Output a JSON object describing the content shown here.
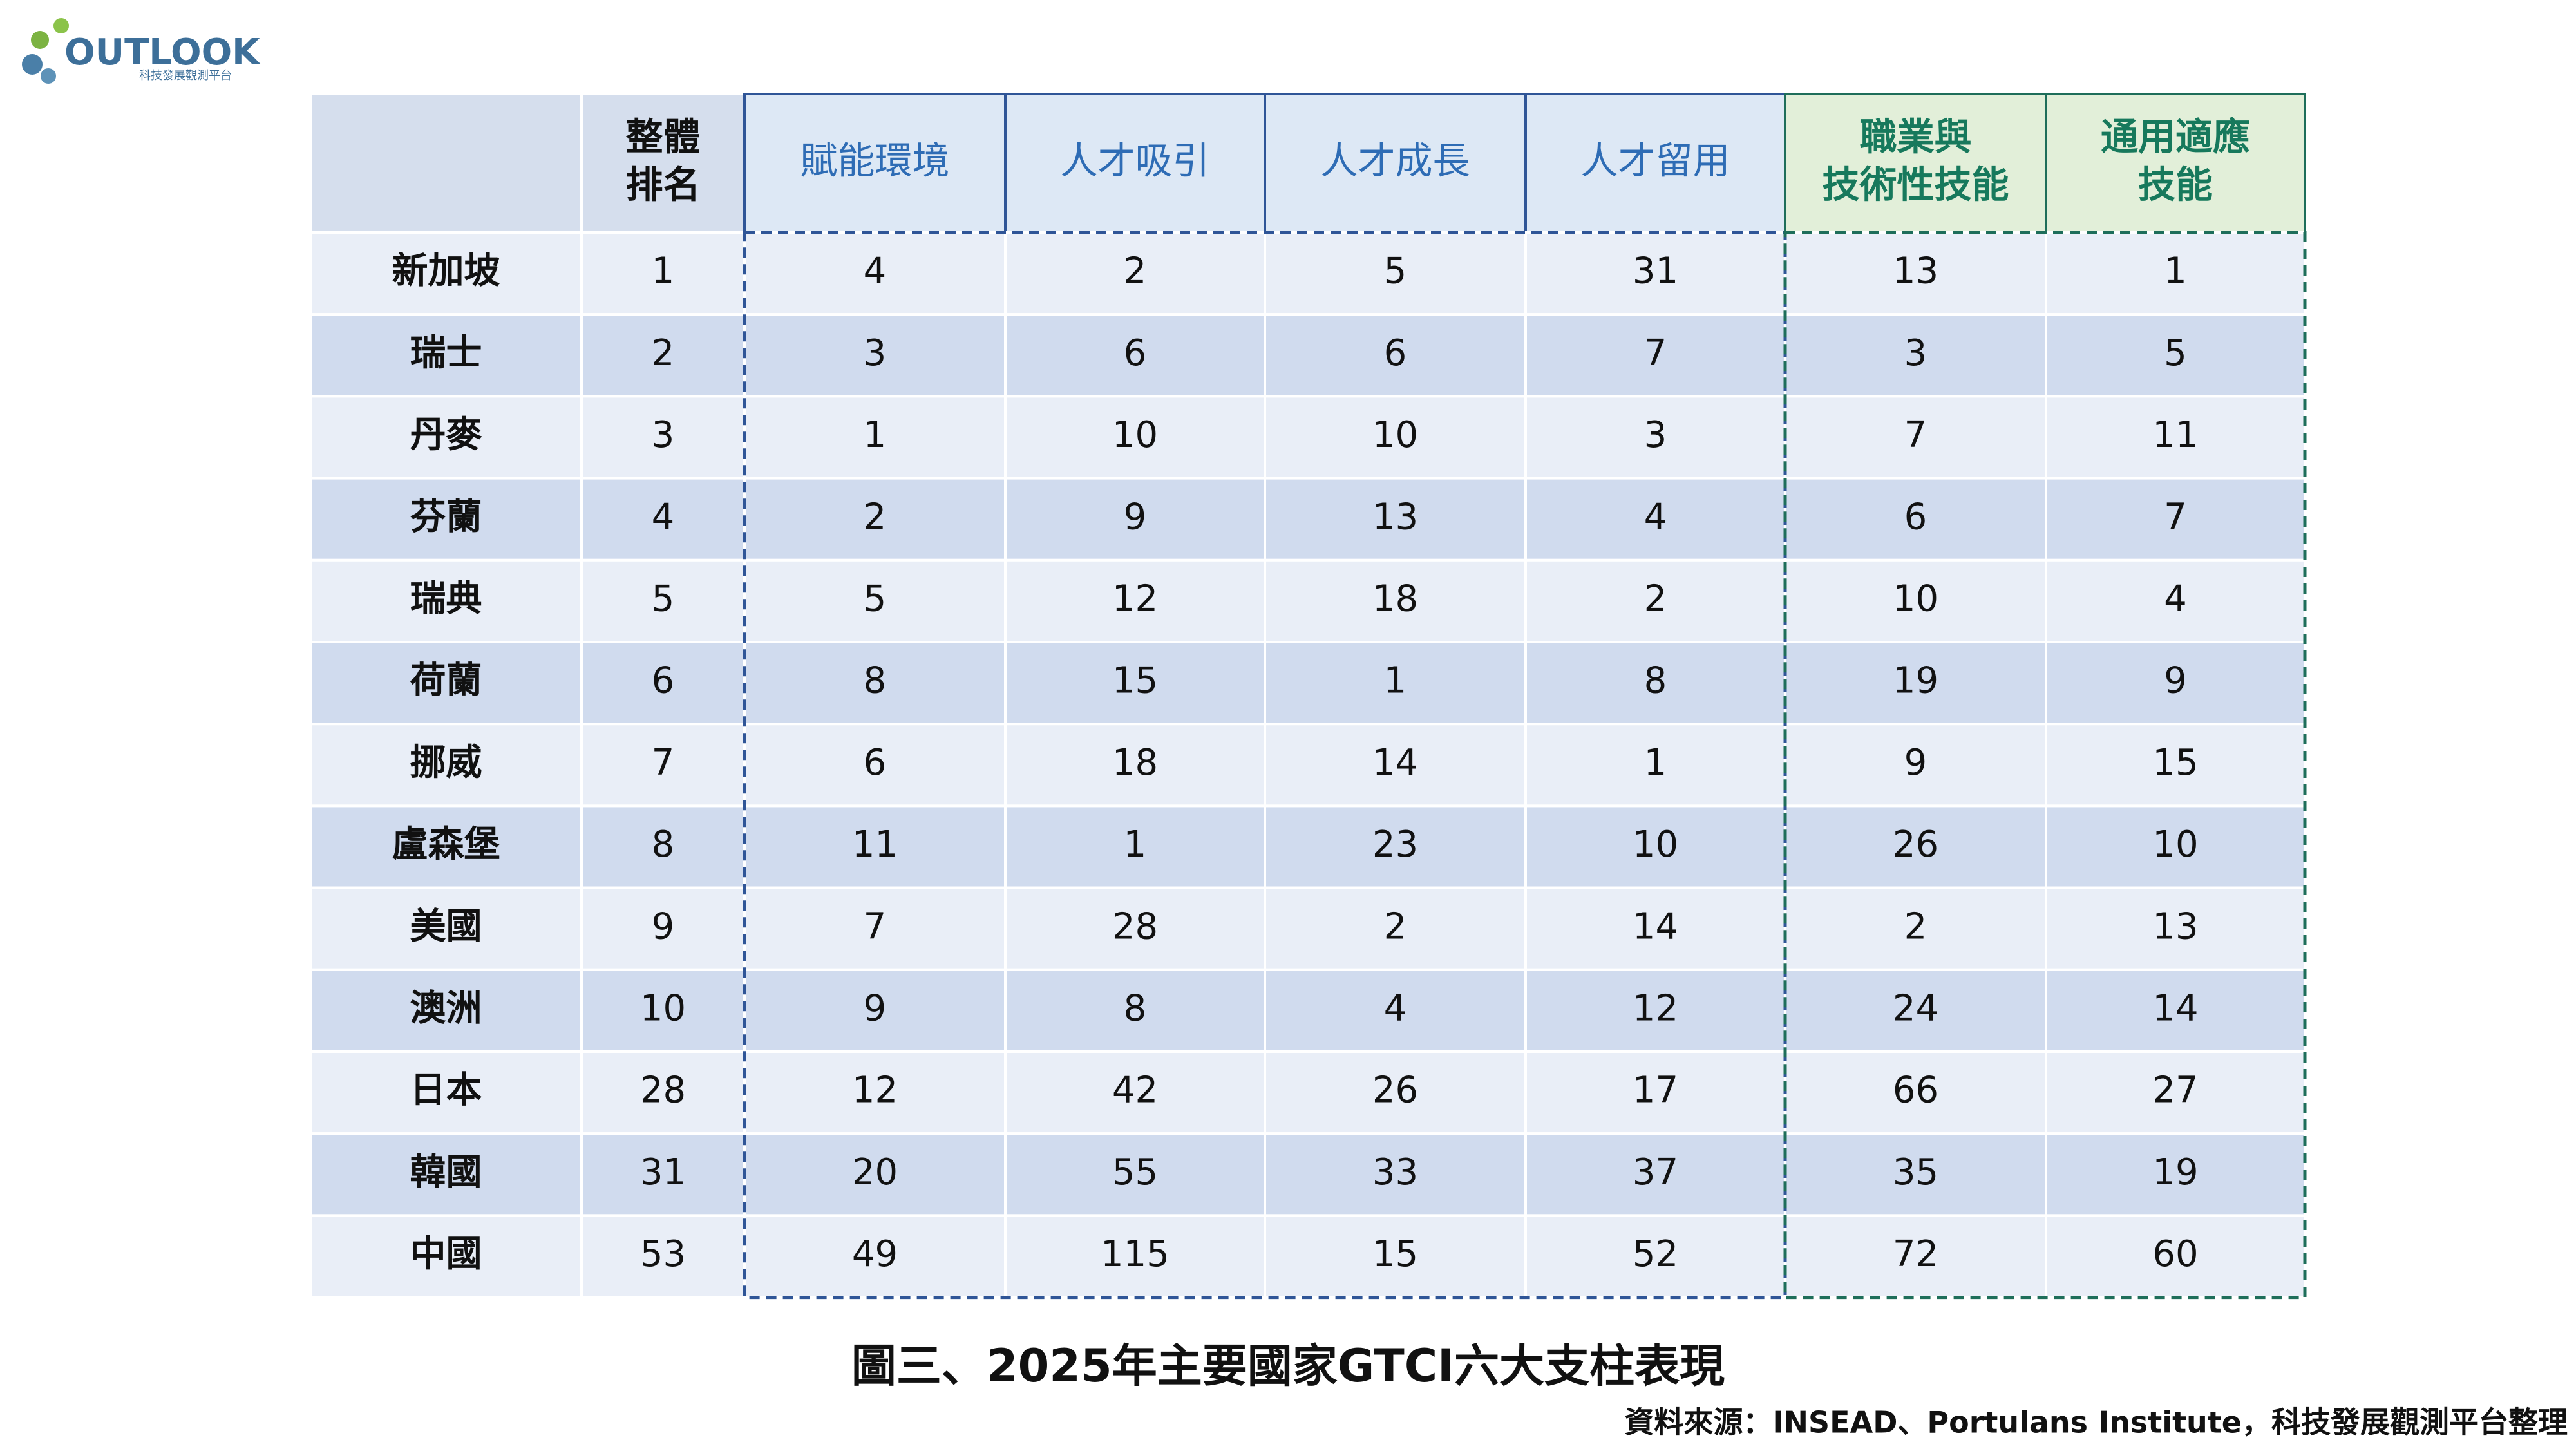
{
  "logo": {
    "text": "OUTLOOK",
    "subtitle": "科技發展觀測平台"
  },
  "table": {
    "columns": [
      [
        "整體",
        "排名"
      ],
      [
        "賦能環境"
      ],
      [
        "人才吸引"
      ],
      [
        "人才成長"
      ],
      [
        "人才留用"
      ],
      [
        "職業與",
        "技術性技能"
      ],
      [
        "通用適應",
        "技能"
      ]
    ],
    "rows": [
      [
        "新加坡",
        1,
        4,
        2,
        5,
        31,
        13,
        1
      ],
      [
        "瑞士",
        2,
        3,
        6,
        6,
        7,
        3,
        5
      ],
      [
        "丹麥",
        3,
        1,
        10,
        10,
        3,
        7,
        11
      ],
      [
        "芬蘭",
        4,
        2,
        9,
        13,
        4,
        6,
        7
      ],
      [
        "瑞典",
        5,
        5,
        12,
        18,
        2,
        10,
        4
      ],
      [
        "荷蘭",
        6,
        8,
        15,
        1,
        8,
        19,
        9
      ],
      [
        "挪威",
        7,
        6,
        18,
        14,
        1,
        9,
        15
      ],
      [
        "盧森堡",
        8,
        11,
        1,
        23,
        10,
        26,
        10
      ],
      [
        "美國",
        9,
        7,
        28,
        2,
        14,
        2,
        13
      ],
      [
        "澳洲",
        10,
        9,
        8,
        4,
        12,
        24,
        14
      ],
      [
        "日本",
        28,
        12,
        42,
        26,
        17,
        66,
        27
      ],
      [
        "韓國",
        31,
        20,
        55,
        33,
        37,
        35,
        19
      ],
      [
        "中國",
        53,
        49,
        115,
        15,
        52,
        72,
        60
      ]
    ]
  },
  "caption": "圖三、2025年主要國家GTCI六大支柱表現",
  "source": "資料來源：INSEAD、Portulans Institute，科技發展觀測平台整理"
}
